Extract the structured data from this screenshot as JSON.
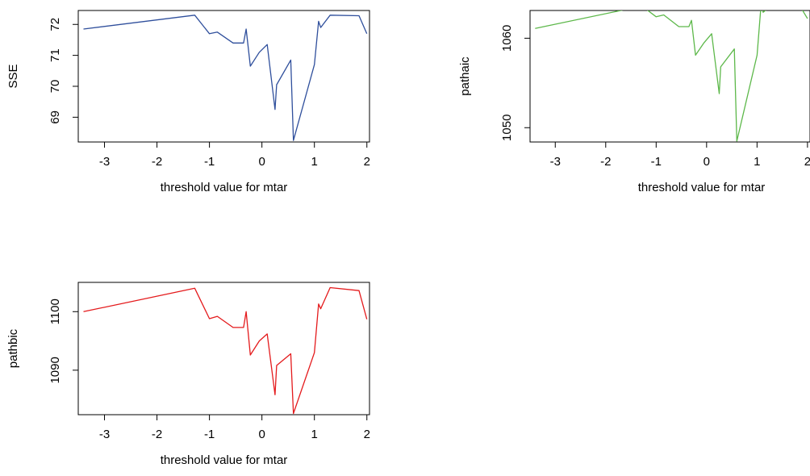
{
  "chart_data": [
    {
      "type": "line",
      "panel": "top-left",
      "xlabel": "threshold value for mtar",
      "ylabel": "SSE",
      "color": "#2f4f9c",
      "xlim": [
        -3.5,
        2.05
      ],
      "ylim": [
        68.2,
        72.45
      ],
      "x_ticks": [
        -3,
        -2,
        -1,
        0,
        1,
        2
      ],
      "x_tick_labels": [
        "-3",
        "-2",
        "-1",
        "0",
        "1",
        "2"
      ],
      "y_ticks": [
        69,
        70,
        71,
        72
      ],
      "y_tick_labels": [
        "69",
        "70",
        "71",
        "72"
      ],
      "x": [
        -3.4,
        -1.28,
        -1.0,
        -0.85,
        -0.55,
        -0.35,
        -0.3,
        -0.22,
        -0.05,
        0.1,
        0.25,
        0.28,
        0.55,
        0.6,
        1.0,
        1.08,
        1.12,
        1.3,
        1.85,
        2.0
      ],
      "y": [
        71.85,
        72.3,
        71.7,
        71.75,
        71.4,
        71.4,
        71.85,
        70.65,
        71.1,
        71.35,
        69.25,
        70.05,
        70.85,
        68.25,
        70.7,
        72.1,
        71.9,
        72.3,
        72.28,
        71.7
      ]
    },
    {
      "type": "line",
      "panel": "top-right",
      "xlabel": "threshold value for mtar",
      "ylabel": "pathaic",
      "color": "#5db84a",
      "xlim": [
        -3.5,
        2.05
      ],
      "ylim": [
        1048.4,
        1063.1
      ],
      "x_ticks": [
        -3,
        -2,
        -1,
        0,
        1,
        2
      ],
      "x_tick_labels": [
        "-3",
        "-2",
        "-1",
        "0",
        "1",
        "2"
      ],
      "y_ticks": [
        1050,
        1060
      ],
      "y_tick_labels": [
        "1050",
        "1060"
      ],
      "x": [
        -3.4,
        -1.28,
        -1.0,
        -0.85,
        -0.55,
        -0.35,
        -0.3,
        -0.22,
        -0.05,
        0.1,
        0.25,
        0.28,
        0.55,
        0.6,
        1.0,
        1.08,
        1.12,
        1.3,
        1.85,
        2.0
      ],
      "y": [
        1061.1,
        1063.6,
        1062.4,
        1062.6,
        1061.3,
        1061.3,
        1062.0,
        1058.1,
        1059.5,
        1060.5,
        1053.8,
        1056.8,
        1058.8,
        1048.5,
        1058.1,
        1063.8,
        1062.9,
        1063.7,
        1063.6,
        1062.2
      ]
    },
    {
      "type": "line",
      "panel": "bottom-left",
      "xlabel": "threshold value for mtar",
      "ylabel": "pathbic",
      "color": "#e41a1c",
      "xlim": [
        -3.5,
        2.05
      ],
      "ylim": [
        1082.4,
        1105.0
      ],
      "x_ticks": [
        -3,
        -2,
        -1,
        0,
        1,
        2
      ],
      "x_tick_labels": [
        "-3",
        "-2",
        "-1",
        "0",
        "1",
        "2"
      ],
      "y_ticks": [
        1090,
        1100
      ],
      "y_tick_labels": [
        "1090",
        "1100"
      ],
      "x": [
        -3.4,
        -1.28,
        -1.0,
        -0.85,
        -0.55,
        -0.35,
        -0.3,
        -0.22,
        -0.05,
        0.1,
        0.25,
        0.28,
        0.55,
        0.6,
        1.0,
        1.08,
        1.12,
        1.3,
        1.85,
        2.0
      ],
      "y": [
        1100.0,
        1104.0,
        1098.8,
        1099.2,
        1097.3,
        1097.3,
        1100.0,
        1092.6,
        1095.0,
        1096.2,
        1085.8,
        1090.8,
        1092.8,
        1082.6,
        1093.0,
        1101.3,
        1100.5,
        1104.1,
        1103.6,
        1098.7
      ]
    }
  ]
}
